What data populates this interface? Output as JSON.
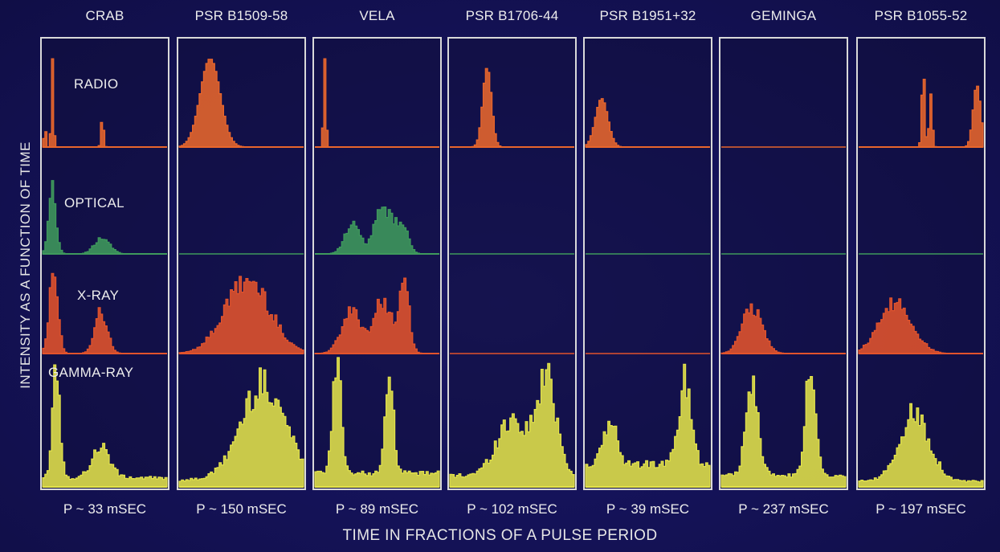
{
  "chart_data": {
    "type": "area",
    "ylabel": "INTENSITY AS A FUNCTION OF TIME",
    "xlabel": "TIME IN FRACTIONS OF A PULSE PERIOD",
    "xlim": [
      0,
      1
    ],
    "bands": [
      {
        "name": "RADIO",
        "color": "#e8662c"
      },
      {
        "name": "OPTICAL",
        "color": "#3f9a5c"
      },
      {
        "name": "X-RAY",
        "color": "#e2532c"
      },
      {
        "name": "GAMMA-RAY",
        "color": "#e3e34a"
      }
    ],
    "pulsars": [
      {
        "name": "CRAB",
        "period": "P ~ 33 mSEC",
        "radio": [
          {
            "p": 0.02,
            "w": 0.008,
            "a": 0.25
          },
          {
            "p": 0.08,
            "w": 0.009,
            "a": 1.0
          },
          {
            "p": 0.48,
            "w": 0.01,
            "a": 0.35
          }
        ],
        "optical": [
          {
            "p": 0.08,
            "w": 0.03,
            "a": 1.0
          },
          {
            "p": 0.48,
            "w": 0.06,
            "a": 0.25
          }
        ],
        "xray": [
          {
            "p": 0.09,
            "w": 0.035,
            "a": 1.0
          },
          {
            "p": 0.47,
            "w": 0.05,
            "a": 0.55
          }
        ],
        "gamma": [
          {
            "p": 0.11,
            "w": 0.03,
            "a": 1.0
          },
          {
            "p": 0.47,
            "w": 0.07,
            "a": 0.28
          }
        ],
        "gamma_base": 0.08
      },
      {
        "name": "PSR B1509-58",
        "period": "P ~ 150 mSEC",
        "radio": [
          {
            "p": 0.25,
            "w": 0.08,
            "a": 1.0
          }
        ],
        "xray": [
          {
            "p": 0.55,
            "w": 0.18,
            "a": 0.95
          }
        ],
        "gamma": [
          {
            "p": 0.68,
            "w": 0.18,
            "a": 0.85
          }
        ],
        "gamma_base": 0.06
      },
      {
        "name": "VELA",
        "period": "P ~ 89 mSEC",
        "radio": [
          {
            "p": 0.08,
            "w": 0.01,
            "a": 1.0
          }
        ],
        "optical": [
          {
            "p": 0.3,
            "w": 0.06,
            "a": 0.45
          },
          {
            "p": 0.55,
            "w": 0.07,
            "a": 0.7
          },
          {
            "p": 0.7,
            "w": 0.05,
            "a": 0.4
          }
        ],
        "xray": [
          {
            "p": 0.3,
            "w": 0.08,
            "a": 0.55
          },
          {
            "p": 0.55,
            "w": 0.07,
            "a": 0.7
          },
          {
            "p": 0.72,
            "w": 0.04,
            "a": 0.85
          }
        ],
        "gamma": [
          {
            "p": 0.18,
            "w": 0.035,
            "a": 0.95
          },
          {
            "p": 0.6,
            "w": 0.035,
            "a": 0.75
          }
        ],
        "gamma_base": 0.12
      },
      {
        "name": "PSR B1706-44",
        "period": "P ~ 102 mSEC",
        "radio": [
          {
            "p": 0.3,
            "w": 0.035,
            "a": 0.9
          }
        ],
        "gamma": [
          {
            "p": 0.5,
            "w": 0.12,
            "a": 0.5
          },
          {
            "p": 0.78,
            "w": 0.08,
            "a": 0.85
          }
        ],
        "gamma_base": 0.1
      },
      {
        "name": "PSR B1951+32",
        "period": "P ~ 39 mSEC",
        "radio": [
          {
            "p": 0.13,
            "w": 0.05,
            "a": 0.55
          }
        ],
        "gamma": [
          {
            "p": 0.2,
            "w": 0.05,
            "a": 0.4
          },
          {
            "p": 0.8,
            "w": 0.05,
            "a": 0.75
          }
        ],
        "gamma_base": 0.2
      },
      {
        "name": "GEMINGA",
        "period": "P ~  237 mSEC",
        "xray": [
          {
            "p": 0.25,
            "w": 0.08,
            "a": 0.6
          }
        ],
        "gamma": [
          {
            "p": 0.25,
            "w": 0.05,
            "a": 0.8
          },
          {
            "p": 0.72,
            "w": 0.04,
            "a": 1.0
          }
        ],
        "gamma_base": 0.1
      },
      {
        "name": "PSR B1055-52",
        "period": "P ~ 197 mSEC",
        "radio": [
          {
            "p": 0.52,
            "w": 0.012,
            "a": 0.9
          },
          {
            "p": 0.58,
            "w": 0.012,
            "a": 0.6
          },
          {
            "p": 0.95,
            "w": 0.03,
            "a": 0.7
          }
        ],
        "xray": [
          {
            "p": 0.3,
            "w": 0.13,
            "a": 0.65
          }
        ],
        "gamma": [
          {
            "p": 0.45,
            "w": 0.12,
            "a": 0.6
          }
        ],
        "gamma_base": 0.05
      }
    ]
  }
}
